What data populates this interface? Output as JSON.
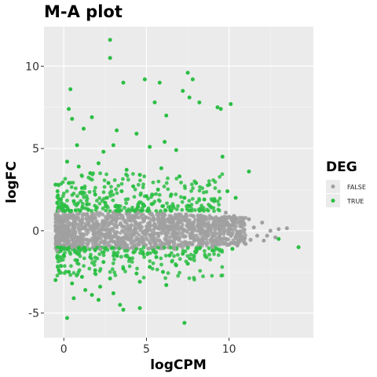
{
  "chart_data": {
    "type": "scatter",
    "title": "M-A plot",
    "xlabel": "logCPM",
    "ylabel": "logFC",
    "xlim": [
      -1.2,
      15.1
    ],
    "ylim": [
      -6.5,
      12.4
    ],
    "xticks": [
      0,
      5,
      10
    ],
    "yticks": [
      -5,
      0,
      5,
      10
    ],
    "x_tick_labels": [
      "0",
      "5",
      "10"
    ],
    "y_tick_labels": [
      "-5",
      "0",
      "5",
      "10"
    ],
    "grid": true,
    "legend": {
      "title": "DEG",
      "placement": "right",
      "entries": [
        "FALSE",
        "TRUE"
      ]
    },
    "series": [
      {
        "name": "FALSE",
        "color": "#a0a0a0",
        "points": [
          [
            -0.5,
            0.3
          ],
          [
            0.2,
            -0.4
          ],
          [
            1.0,
            0.6
          ],
          [
            1.8,
            -0.2
          ],
          [
            2.5,
            0.5
          ],
          [
            3.2,
            -0.7
          ],
          [
            4.0,
            0.2
          ],
          [
            4.8,
            -0.5
          ],
          [
            5.5,
            0.4
          ],
          [
            6.2,
            -0.3
          ],
          [
            7.0,
            0.6
          ],
          [
            7.8,
            -0.4
          ],
          [
            8.5,
            0.5
          ],
          [
            9.2,
            -0.6
          ],
          [
            10.0,
            0.3
          ],
          [
            10.8,
            -0.4
          ],
          [
            11.5,
            0.2
          ],
          [
            12.3,
            -0.3
          ],
          [
            13.0,
            0.1
          ],
          [
            13.5,
            0.15
          ],
          [
            12.8,
            -0.4
          ],
          [
            12.0,
            0.5
          ],
          [
            11.2,
            0.7
          ],
          [
            10.5,
            -0.9
          ],
          [
            9.8,
            1.1
          ],
          [
            9.0,
            -1.0
          ],
          [
            8.2,
            0.9
          ],
          [
            8.9,
            0.8
          ],
          [
            9.6,
            -0.5
          ],
          [
            10.3,
            0.9
          ],
          [
            11.0,
            -0.8
          ],
          [
            11.7,
            -0.3
          ],
          [
            12.5,
            0.0
          ],
          [
            11.3,
            -0.55
          ],
          [
            10.1,
            -0.75
          ],
          [
            10.9,
            0.45
          ],
          [
            9.4,
            0.6
          ],
          [
            12.1,
            -0.6
          ],
          [
            0.5,
            -1.0
          ],
          [
            1.4,
            1.0
          ],
          [
            2.2,
            -1.1
          ],
          [
            3.0,
            1.1
          ],
          [
            3.7,
            -1.0
          ],
          [
            4.5,
            1.1
          ],
          [
            5.3,
            -1.0
          ],
          [
            6.0,
            1.0
          ],
          [
            6.7,
            -1.1
          ],
          [
            7.4,
            1.0
          ],
          [
            0.0,
            0.0
          ],
          [
            -0.3,
            1.2
          ],
          [
            -0.4,
            -1.2
          ]
        ]
      },
      {
        "name": "TRUE",
        "color": "#2bbe44",
        "points": [
          [
            0.4,
            8.6
          ],
          [
            0.3,
            7.4
          ],
          [
            0.5,
            6.8
          ],
          [
            0.8,
            5.2
          ],
          [
            1.2,
            6.2
          ],
          [
            1.7,
            6.9
          ],
          [
            2.8,
            11.6
          ],
          [
            2.8,
            10.5
          ],
          [
            3.6,
            9.0
          ],
          [
            4.9,
            9.2
          ],
          [
            5.8,
            9.0
          ],
          [
            7.5,
            9.6
          ],
          [
            7.8,
            9.2
          ],
          [
            7.2,
            8.5
          ],
          [
            7.6,
            8.1
          ],
          [
            8.2,
            7.8
          ],
          [
            9.3,
            7.5
          ],
          [
            9.5,
            7.4
          ],
          [
            10.1,
            7.7
          ],
          [
            5.5,
            7.8
          ],
          [
            6.2,
            7.0
          ],
          [
            3.2,
            6.1
          ],
          [
            4.4,
            5.9
          ],
          [
            3.0,
            5.2
          ],
          [
            2.4,
            4.8
          ],
          [
            6.1,
            5.4
          ],
          [
            6.8,
            4.9
          ],
          [
            5.2,
            5.1
          ],
          [
            9.6,
            4.5
          ],
          [
            11.2,
            3.6
          ],
          [
            0.2,
            4.2
          ],
          [
            0.9,
            3.9
          ],
          [
            1.6,
            3.5
          ],
          [
            2.1,
            4.1
          ],
          [
            3.8,
            3.7
          ],
          [
            4.6,
            3.4
          ],
          [
            5.9,
            3.8
          ],
          [
            7.0,
            3.3
          ],
          [
            8.0,
            2.9
          ],
          [
            8.8,
            2.8
          ],
          [
            9.9,
            2.4
          ],
          [
            10.4,
            2.0
          ],
          [
            0.3,
            2.9
          ],
          [
            1.1,
            2.6
          ],
          [
            1.9,
            2.2
          ],
          [
            2.7,
            2.9
          ],
          [
            3.5,
            2.4
          ],
          [
            4.2,
            2.7
          ],
          [
            5.0,
            2.1
          ],
          [
            5.7,
            2.5
          ],
          [
            6.5,
            2.2
          ],
          [
            7.3,
            2.0
          ],
          [
            8.5,
            1.9
          ],
          [
            9.1,
            1.8
          ],
          [
            0.6,
            1.8
          ],
          [
            1.4,
            1.6
          ],
          [
            2.5,
            1.7
          ],
          [
            3.3,
            1.5
          ],
          [
            4.8,
            1.6
          ],
          [
            6.0,
            1.5
          ],
          [
            7.6,
            1.5
          ],
          [
            0.1,
            1.5
          ],
          [
            -0.4,
            1.7
          ],
          [
            -0.5,
            2.8
          ],
          [
            0.0,
            -1.5
          ],
          [
            0.8,
            -1.8
          ],
          [
            1.6,
            -1.6
          ],
          [
            2.4,
            -1.9
          ],
          [
            3.2,
            -1.5
          ],
          [
            4.0,
            -1.7
          ],
          [
            4.8,
            -1.4
          ],
          [
            5.6,
            -1.6
          ],
          [
            6.4,
            -1.5
          ],
          [
            7.2,
            -1.4
          ],
          [
            8.0,
            -1.3
          ],
          [
            9.0,
            -1.2
          ],
          [
            10.2,
            -1.1
          ],
          [
            0.3,
            -2.5
          ],
          [
            1.1,
            -2.8
          ],
          [
            1.9,
            -2.4
          ],
          [
            2.8,
            -2.9
          ],
          [
            3.6,
            -2.3
          ],
          [
            4.4,
            -2.6
          ],
          [
            5.2,
            -2.2
          ],
          [
            6.0,
            -2.5
          ],
          [
            6.8,
            -2.1
          ],
          [
            7.5,
            -2.0
          ],
          [
            0.5,
            -3.2
          ],
          [
            1.3,
            -3.6
          ],
          [
            2.2,
            -3.4
          ],
          [
            3.0,
            -3.8
          ],
          [
            4.6,
            -3.1
          ],
          [
            6.2,
            -3.3
          ],
          [
            0.6,
            -4.1
          ],
          [
            1.7,
            -3.9
          ],
          [
            2.1,
            -4.2
          ],
          [
            3.4,
            -4.5
          ],
          [
            4.6,
            -4.7
          ],
          [
            3.6,
            -4.8
          ],
          [
            0.2,
            -5.3
          ],
          [
            7.3,
            -5.6
          ],
          [
            -0.4,
            -1.6
          ],
          [
            -0.3,
            -2.4
          ],
          [
            -0.5,
            -3.0
          ],
          [
            14.2,
            -1.0
          ],
          [
            13.0,
            -0.5
          ]
        ]
      }
    ]
  }
}
